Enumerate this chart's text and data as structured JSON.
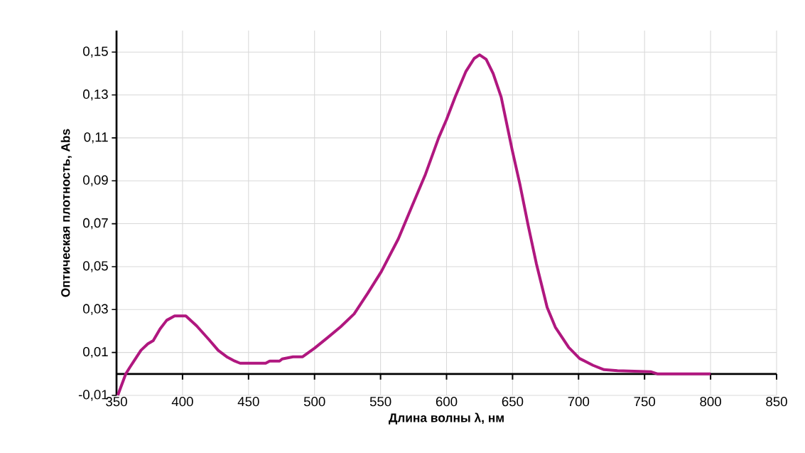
{
  "chart_data": {
    "type": "line",
    "xlabel": "Длина волны λ, нм",
    "ylabel": "Оптическая плотность, Abs",
    "xlim": [
      350,
      850
    ],
    "ylim": [
      -0.01,
      0.16
    ],
    "xticks": [
      350,
      400,
      450,
      500,
      550,
      600,
      650,
      700,
      750,
      800,
      850
    ],
    "yticks": [
      {
        "value": -0.01,
        "label": "-0,01"
      },
      {
        "value": 0.01,
        "label": "0,01"
      },
      {
        "value": 0.03,
        "label": "0,03"
      },
      {
        "value": 0.05,
        "label": "0,05"
      },
      {
        "value": 0.07,
        "label": "0,07"
      },
      {
        "value": 0.09,
        "label": "0,09"
      },
      {
        "value": 0.11,
        "label": "0,11"
      },
      {
        "value": 0.13,
        "label": "0,13"
      },
      {
        "value": 0.15,
        "label": "0,15"
      }
    ],
    "grid": true,
    "marker": "none",
    "line_style": "solid",
    "series": [
      {
        "color": "#b0177f",
        "x": [
          351,
          357,
          360,
          368.5,
          373.7,
          377.8,
          383,
          388,
          394,
          402.5,
          410.7,
          420,
          427,
          434,
          439.5,
          443.6,
          463,
          466,
          473.5,
          475.5,
          483.7,
          491,
          500,
          509.5,
          519.8,
          530,
          540.3,
          550.6,
          563.5,
          573.7,
          584,
          594,
          600,
          606.5,
          614.7,
          620.9,
          625,
          630,
          635.3,
          641.4,
          649.6,
          655.7,
          661.9,
          668,
          676.2,
          682.4,
          692.6,
          700.8,
          711,
          719.3,
          729.5,
          755,
          760,
          800
        ],
        "values": [
          -0.0099,
          0,
          0.003,
          0.011,
          0.014,
          0.0155,
          0.021,
          0.025,
          0.027,
          0.027,
          0.0224,
          0.016,
          0.011,
          0.0078,
          0.006,
          0.005,
          0.005,
          0.006,
          0.006,
          0.007,
          0.008,
          0.008,
          0.012,
          0.0167,
          0.022,
          0.028,
          0.0376,
          0.0477,
          0.063,
          0.078,
          0.093,
          0.11,
          0.1186,
          0.129,
          0.141,
          0.147,
          0.1487,
          0.1466,
          0.14,
          0.129,
          0.1047,
          0.088,
          0.069,
          0.0515,
          0.031,
          0.0218,
          0.0123,
          0.0072,
          0.004,
          0.002,
          0.0015,
          0.001,
          0,
          0
        ]
      }
    ]
  }
}
